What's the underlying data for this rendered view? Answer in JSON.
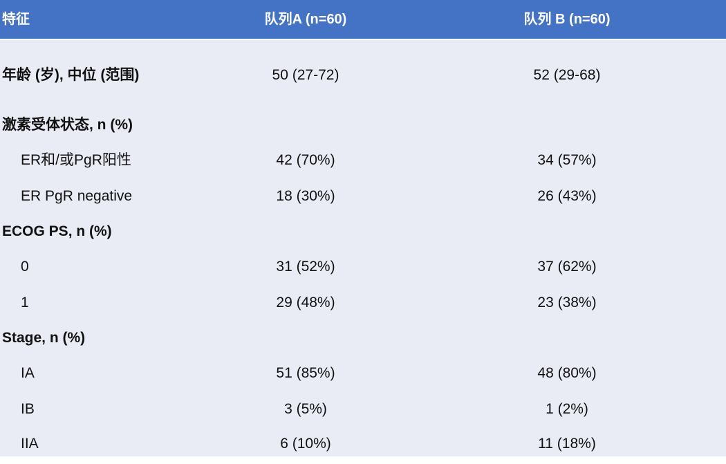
{
  "colors": {
    "header_bg": "#4472c4",
    "header_text": "#ffffff",
    "body_bg": "#e9ecf5",
    "text": "#111111"
  },
  "table": {
    "headers": [
      "特征",
      "队列A (n=60)",
      "队列 B (n=60)"
    ],
    "rows": [
      {
        "label": "年龄 (岁), 中位 (范围)",
        "a": "50 (27-72)",
        "b": "52 (29-68)"
      },
      {
        "label": "激素受体状态, n (%)",
        "a": "",
        "b": ""
      },
      {
        "label": "ER和/或PgR阳性",
        "a": "42 (70%)",
        "b": "34 (57%)"
      },
      {
        "label": "ER PgR negative",
        "a": "18 (30%)",
        "b": "26 (43%)"
      },
      {
        "label": "ECOG PS, n (%)",
        "a": "",
        "b": ""
      },
      {
        "label": "0",
        "a": "31 (52%)",
        "b": "37 (62%)"
      },
      {
        "label": "1",
        "a": "29 (48%)",
        "b": "23 (38%)"
      },
      {
        "label": "Stage, n (%)",
        "a": "",
        "b": ""
      },
      {
        "label": "IA",
        "a": "51 (85%)",
        "b": "48 (80%)"
      },
      {
        "label": "IB",
        "a": "3 (5%)",
        "b": "1 (2%)"
      },
      {
        "label": "IIA",
        "a": "6 (10%)",
        "b": "11 (18%)"
      }
    ]
  }
}
